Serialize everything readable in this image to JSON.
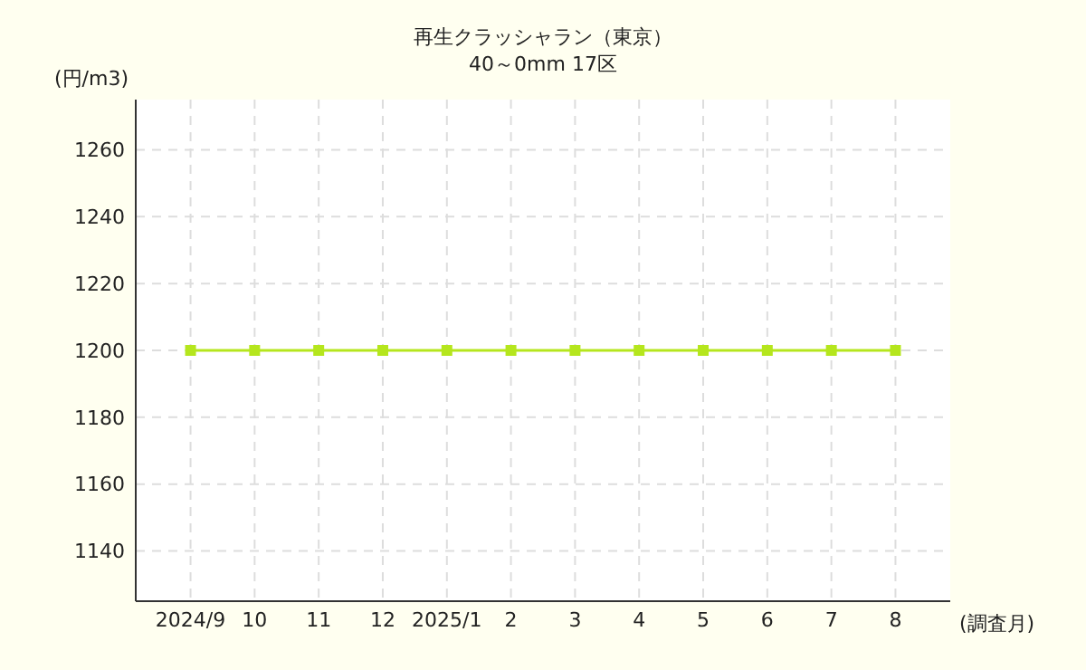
{
  "chart_data": {
    "type": "line",
    "title": "再生クラッシャラン（東京）",
    "subtitle": "40～0mm 17区",
    "ylabel": "(円/m3)",
    "xlabel": "(調査月)",
    "categories": [
      "2024/9",
      "10",
      "11",
      "12",
      "2025/1",
      "2",
      "3",
      "4",
      "5",
      "6",
      "7",
      "8"
    ],
    "series": [
      {
        "color": "#b5e61d",
        "values": [
          1200,
          1200,
          1200,
          1200,
          1200,
          1200,
          1200,
          1200,
          1200,
          1200,
          1200,
          1200
        ]
      }
    ],
    "ylim": [
      1125,
      1275
    ],
    "yticks": [
      1140,
      1160,
      1180,
      1200,
      1220,
      1240,
      1260
    ],
    "grid": true,
    "marker": "square",
    "line_style": "solid"
  }
}
